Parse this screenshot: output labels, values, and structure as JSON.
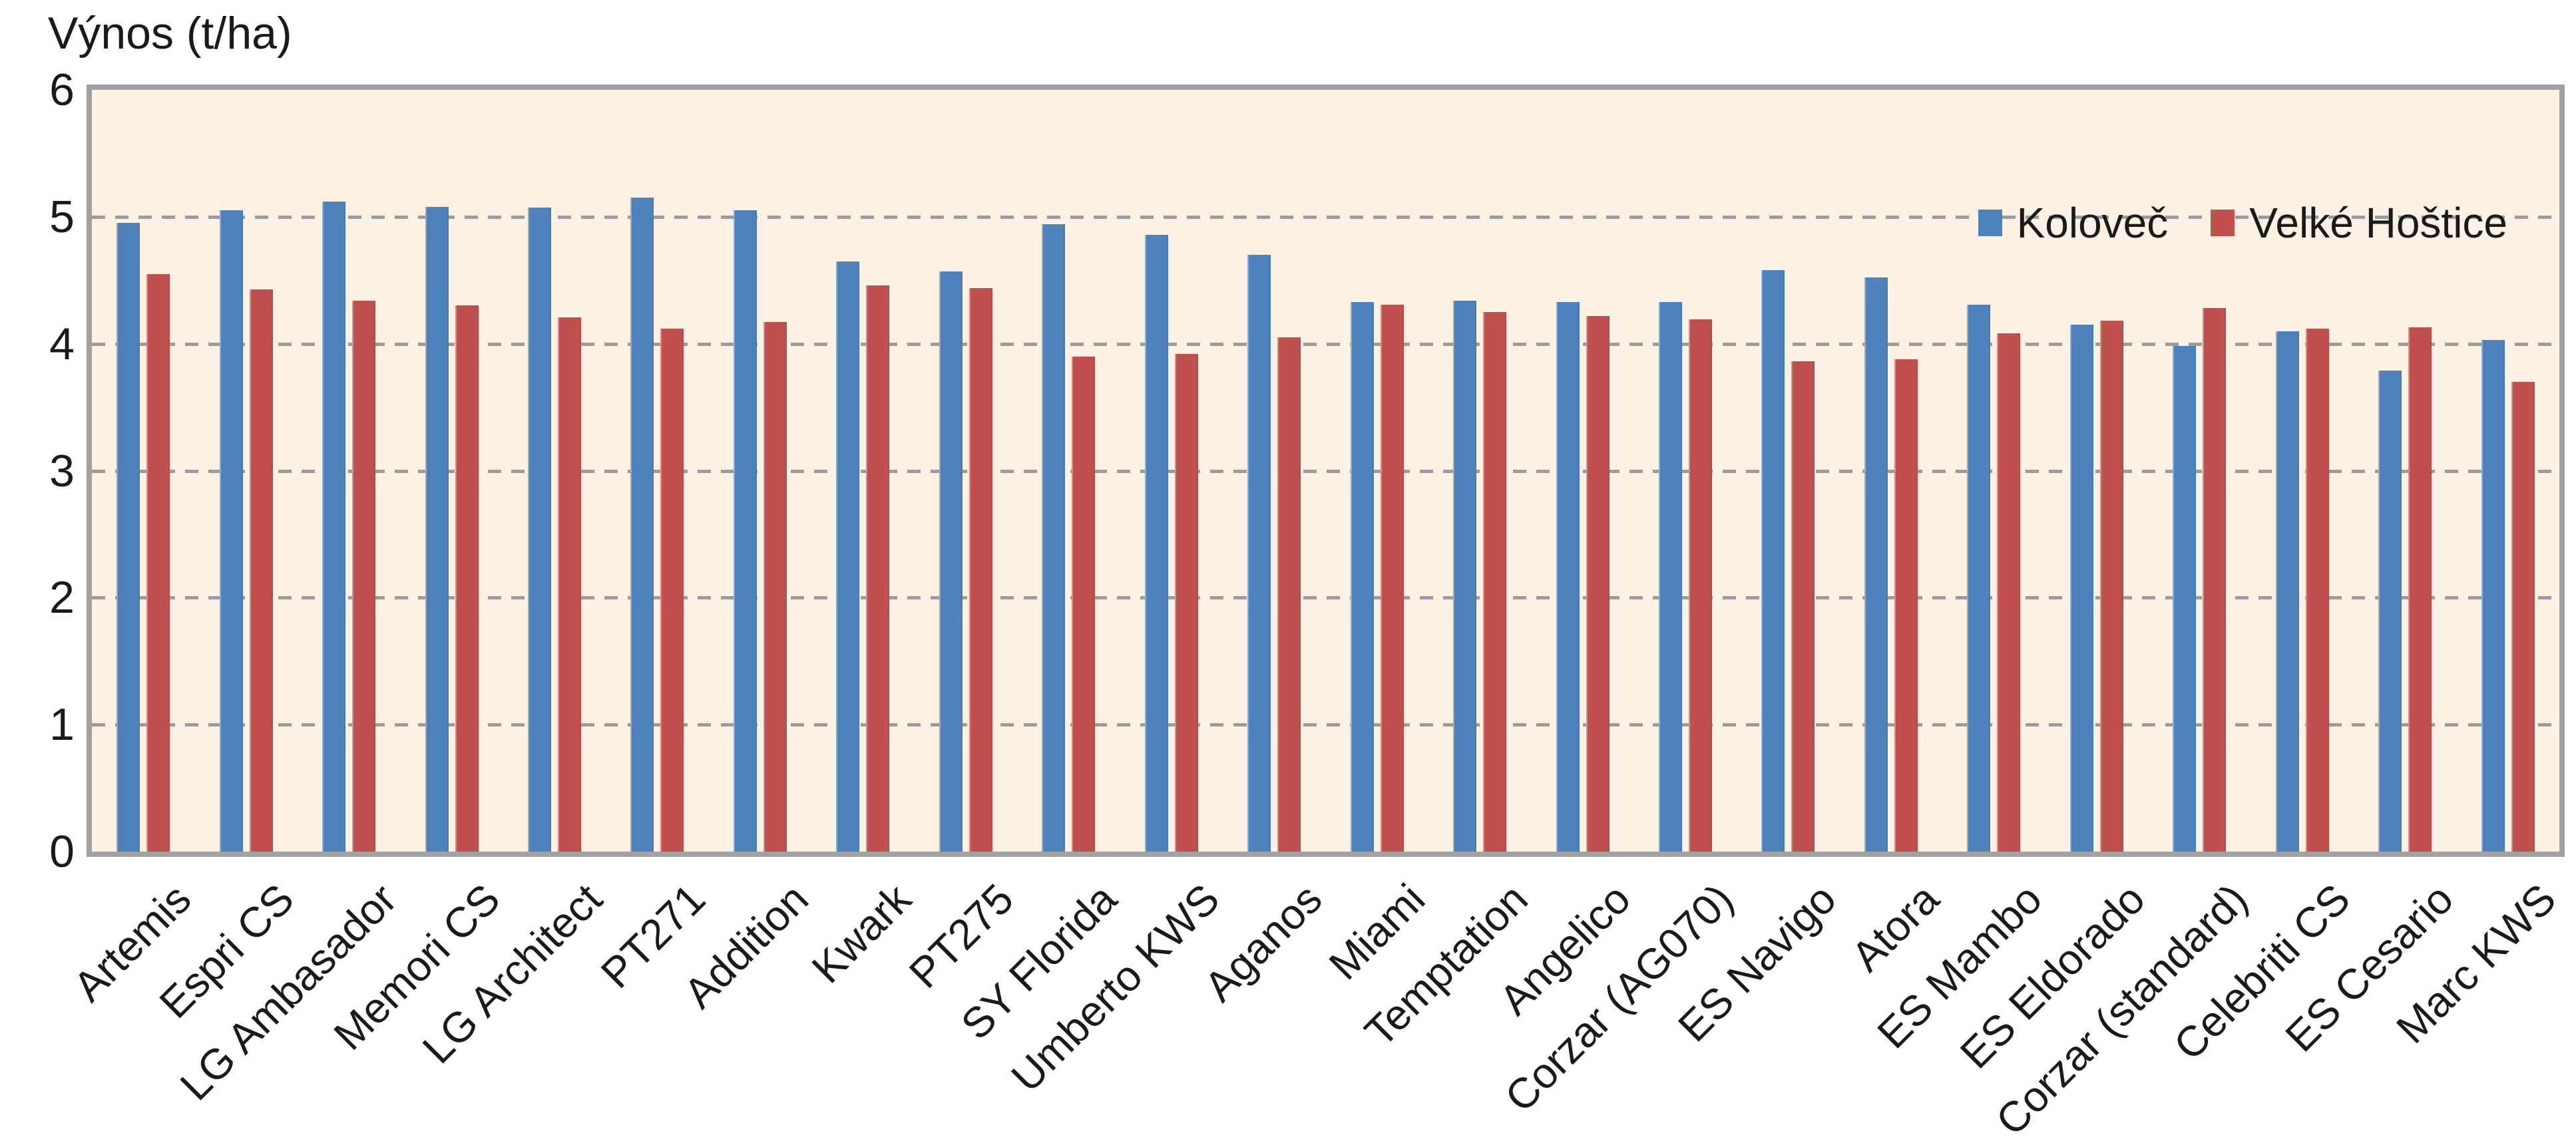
{
  "chart_data": {
    "type": "bar",
    "title": "Výnos (t/ha)",
    "categories": [
      "Artemis",
      "Espri CS",
      "LG Ambasador",
      "Memori CS",
      "LG Architect",
      "PT271",
      "Addition",
      "Kwark",
      "PT275",
      "SY Florida",
      "Umberto KWS",
      "Aganos",
      "Miami",
      "Temptation",
      "Angelico",
      "Corzar (AG070)",
      "ES Navigo",
      "Atora",
      "ES Mambo",
      "ES Eldorado",
      "Corzar (standard)",
      "Celebriti CS",
      "ES Cesario",
      "Marc KWS"
    ],
    "series": [
      {
        "name": "Koloveč",
        "color": "#4F81BD",
        "values": [
          4.95,
          5.05,
          5.12,
          5.08,
          5.07,
          5.15,
          5.05,
          4.65,
          4.57,
          4.94,
          4.86,
          4.7,
          4.33,
          4.34,
          4.33,
          4.33,
          4.58,
          4.52,
          4.31,
          4.15,
          3.98,
          4.1,
          3.79,
          4.03
        ]
      },
      {
        "name": "Velké Hoštice",
        "color": "#C0504D",
        "values": [
          4.55,
          4.43,
          4.34,
          4.3,
          4.21,
          4.12,
          4.17,
          4.46,
          4.44,
          3.9,
          3.92,
          4.05,
          4.31,
          4.25,
          4.22,
          4.19,
          3.86,
          3.88,
          4.08,
          4.18,
          4.28,
          4.12,
          4.13,
          3.7
        ]
      }
    ],
    "xlabel": "",
    "ylabel": "Výnos (t/ha)",
    "ylim": [
      0,
      6
    ],
    "yticks": [
      0,
      1,
      2,
      3,
      4,
      5,
      6
    ],
    "grid": "horizontal dashed gridlines at 1,2,3,4,5",
    "legend_position": "top-right inside plot area",
    "x_label_rotation_deg": -45
  },
  "colors": {
    "plot_background": "#FCF2E4",
    "page_background": "#FFFFFF",
    "gridline": "#9B9B9B",
    "plot_border": "#A1A1A1",
    "text": "#1A1A1A",
    "series_kolovec": "#4F81BD",
    "series_velke_hostice": "#C0504D"
  }
}
